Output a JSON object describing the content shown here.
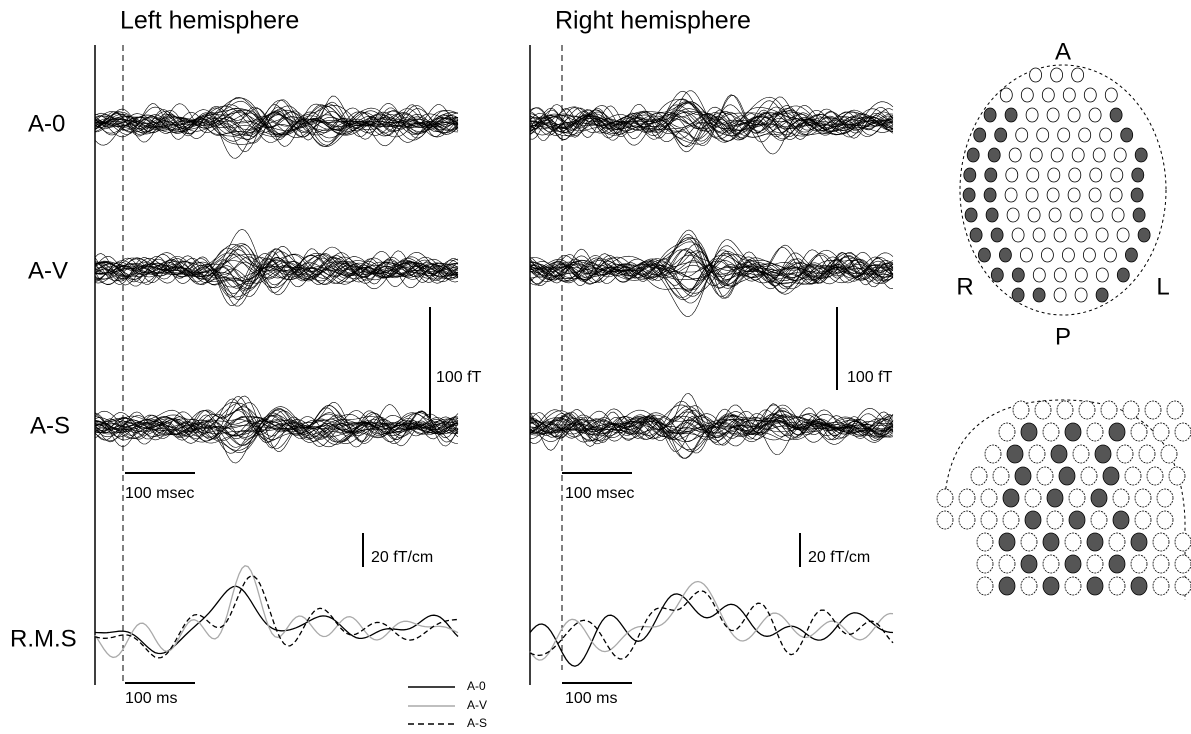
{
  "figure": {
    "panels": [
      {
        "title": "Left hemisphere",
        "amplitude_scale": "100 fT",
        "time_scale": "100 msec",
        "rms_scale": "20 fT/cm",
        "rms_time_scale": "100 ms"
      },
      {
        "title": "Right hemisphere",
        "amplitude_scale": "100 fT",
        "time_scale": "100 msec",
        "rms_scale": "20 fT/cm",
        "rms_time_scale": "100 ms"
      }
    ],
    "rows": [
      "A-0",
      "A-V",
      "A-S",
      "R.M.S"
    ],
    "legend": [
      "A-0",
      "A-V",
      "A-S"
    ],
    "head_labels": {
      "anterior": "A",
      "right": "R",
      "left": "L",
      "posterior": "P"
    }
  }
}
